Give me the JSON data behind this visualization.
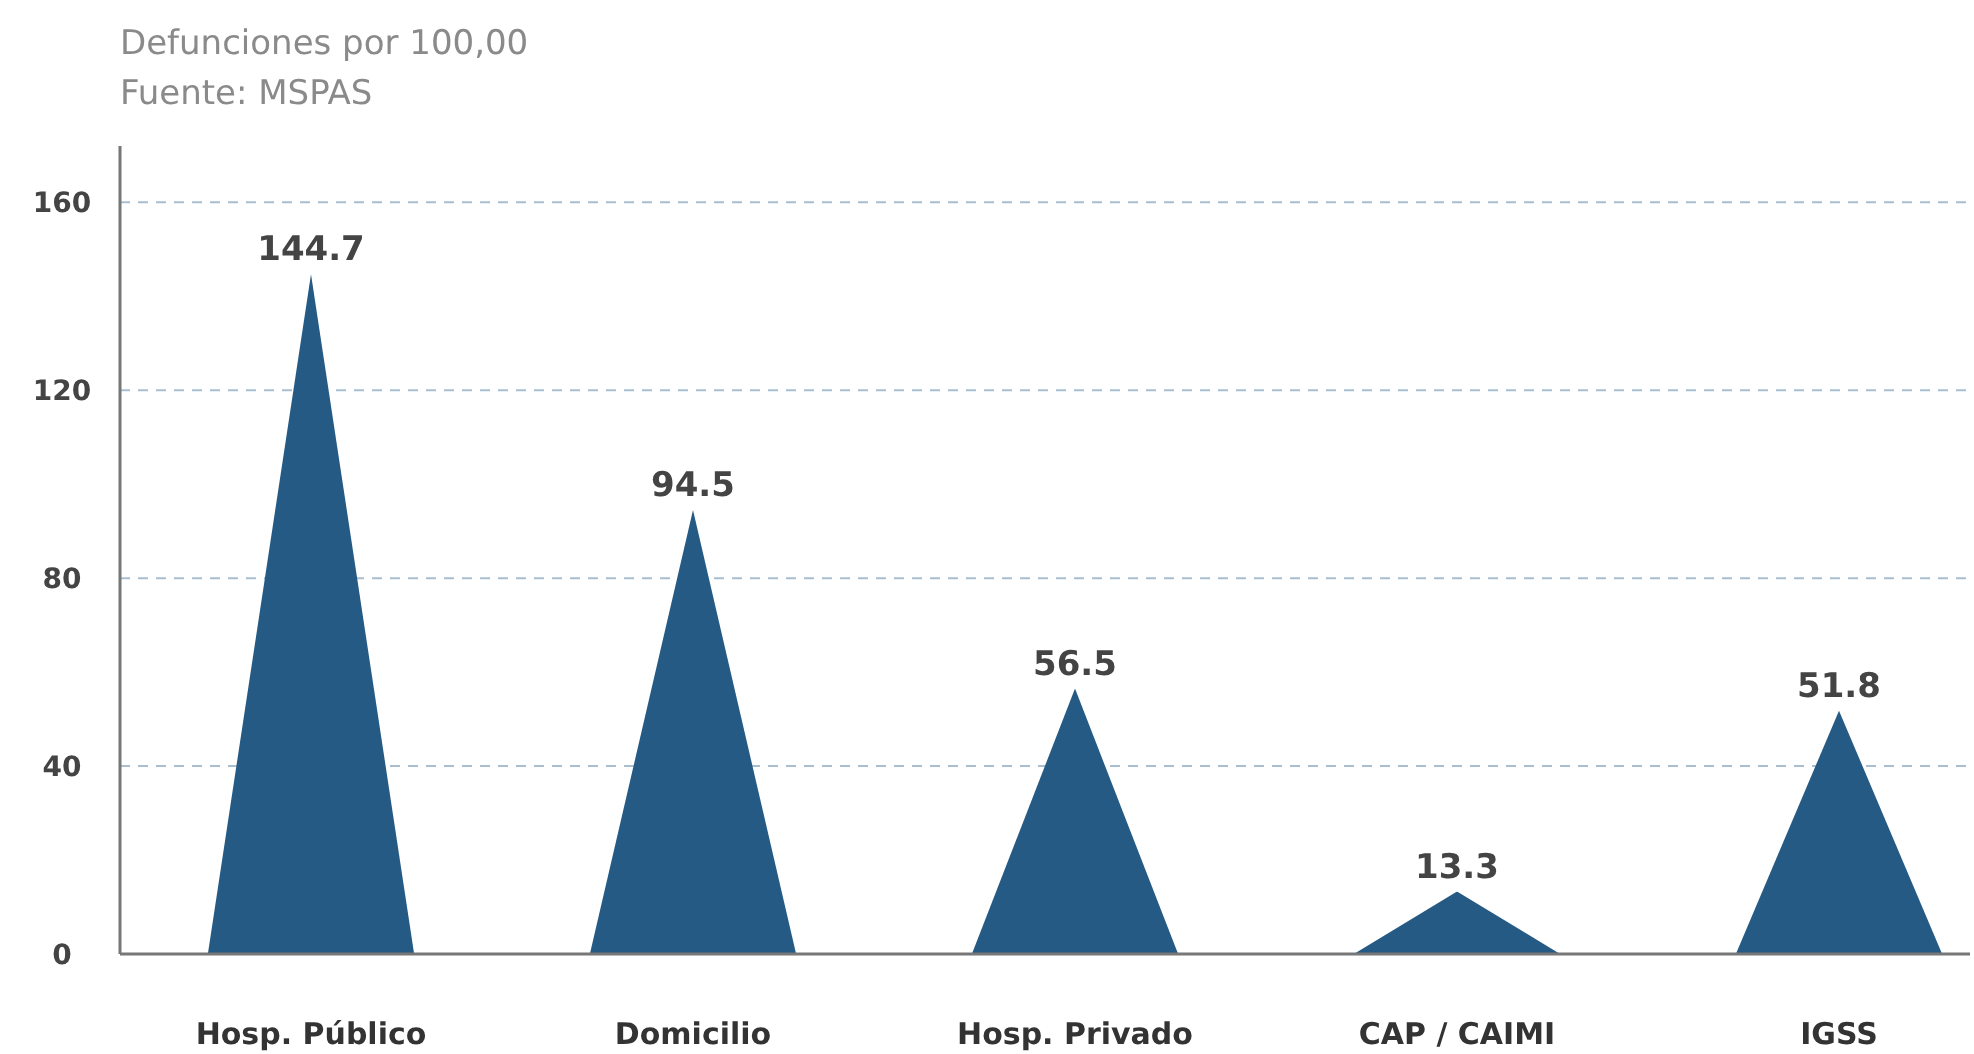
{
  "chart_data": {
    "type": "bar",
    "title": "Defunciones por 100,00",
    "subtitle": "Fuente: MSPAS",
    "categories": [
      "Hosp. Público",
      "Domicilio",
      "Hosp. Privado",
      "CAP / CAIMI",
      "IGSS"
    ],
    "values": [
      144.7,
      94.5,
      56.5,
      13.3,
      51.8
    ],
    "color": "#245a84",
    "ylim": [
      0,
      172
    ],
    "yticks": [
      0,
      40,
      80,
      120,
      160
    ],
    "grid": "y",
    "data_labels": true
  }
}
